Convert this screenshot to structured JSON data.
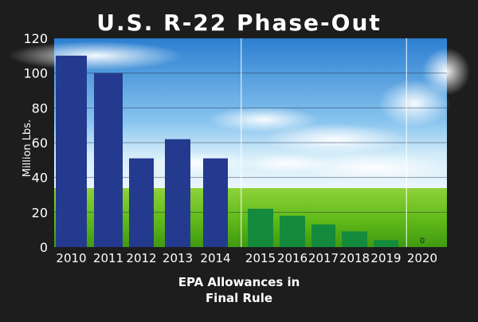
{
  "chart_data": {
    "type": "bar",
    "title": "U.S. R-22 Phase-Out",
    "ylabel": "Million Lbs.",
    "xlabel_lines": [
      "EPA Allowances in",
      "Final Rule"
    ],
    "ylim": [
      0,
      120
    ],
    "yticks": [
      0,
      20,
      40,
      60,
      80,
      100,
      120
    ],
    "grid": true,
    "categories": [
      "2010",
      "2011",
      "2012",
      "2013",
      "2014",
      "2015",
      "2016",
      "2017",
      "2018",
      "2019",
      "2020"
    ],
    "values": [
      110,
      100,
      51,
      62,
      51,
      22,
      18,
      13,
      9,
      4,
      0
    ],
    "data_labels": [
      {
        "category": "2020",
        "text": "0"
      }
    ],
    "colors": {
      "allowance_bars": "#243a8f",
      "phase_out_bars": "#138a3c",
      "sky_top": "#2f86d6",
      "sky_bottom": "#bfe2f7",
      "grass": "#6fc41d",
      "background": "#1d1d1d"
    }
  }
}
